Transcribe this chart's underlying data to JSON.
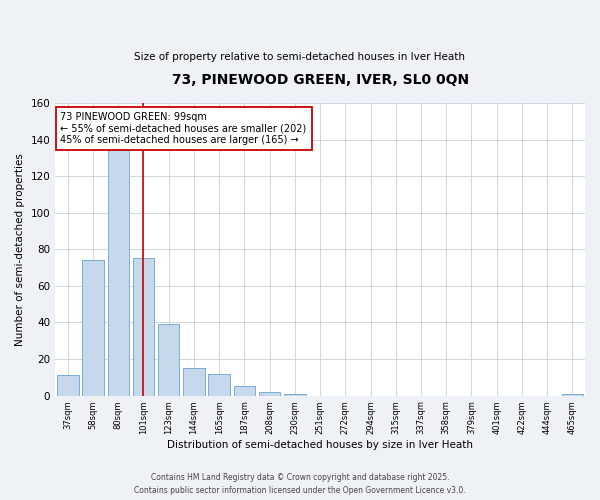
{
  "title": "73, PINEWOOD GREEN, IVER, SL0 0QN",
  "subtitle": "Size of property relative to semi-detached houses in Iver Heath",
  "xlabel": "Distribution of semi-detached houses by size in Iver Heath",
  "ylabel": "Number of semi-detached properties",
  "bar_labels": [
    "37sqm",
    "58sqm",
    "80sqm",
    "101sqm",
    "123sqm",
    "144sqm",
    "165sqm",
    "187sqm",
    "208sqm",
    "230sqm",
    "251sqm",
    "272sqm",
    "294sqm",
    "315sqm",
    "337sqm",
    "358sqm",
    "379sqm",
    "401sqm",
    "422sqm",
    "444sqm",
    "465sqm"
  ],
  "bar_values": [
    11,
    74,
    134,
    75,
    39,
    15,
    12,
    5,
    2,
    1,
    0,
    0,
    0,
    0,
    0,
    0,
    0,
    0,
    0,
    0,
    1
  ],
  "bar_color": "#c6d9ec",
  "bar_edge_color": "#7aaed4",
  "property_line_x_label": "101sqm",
  "property_line_color": "#cc0000",
  "annotation_text": "73 PINEWOOD GREEN: 99sqm\n← 55% of semi-detached houses are smaller (202)\n45% of semi-detached houses are larger (165) →",
  "annotation_box_color": "#ffffff",
  "annotation_box_edge": "#cc0000",
  "ylim": [
    0,
    160
  ],
  "yticks": [
    0,
    20,
    40,
    60,
    80,
    100,
    120,
    140,
    160
  ],
  "footer_line1": "Contains HM Land Registry data © Crown copyright and database right 2025.",
  "footer_line2": "Contains public sector information licensed under the Open Government Licence v3.0.",
  "bg_color": "#eef2f7",
  "plot_bg_color": "#ffffff",
  "grid_color": "#c8d0da"
}
